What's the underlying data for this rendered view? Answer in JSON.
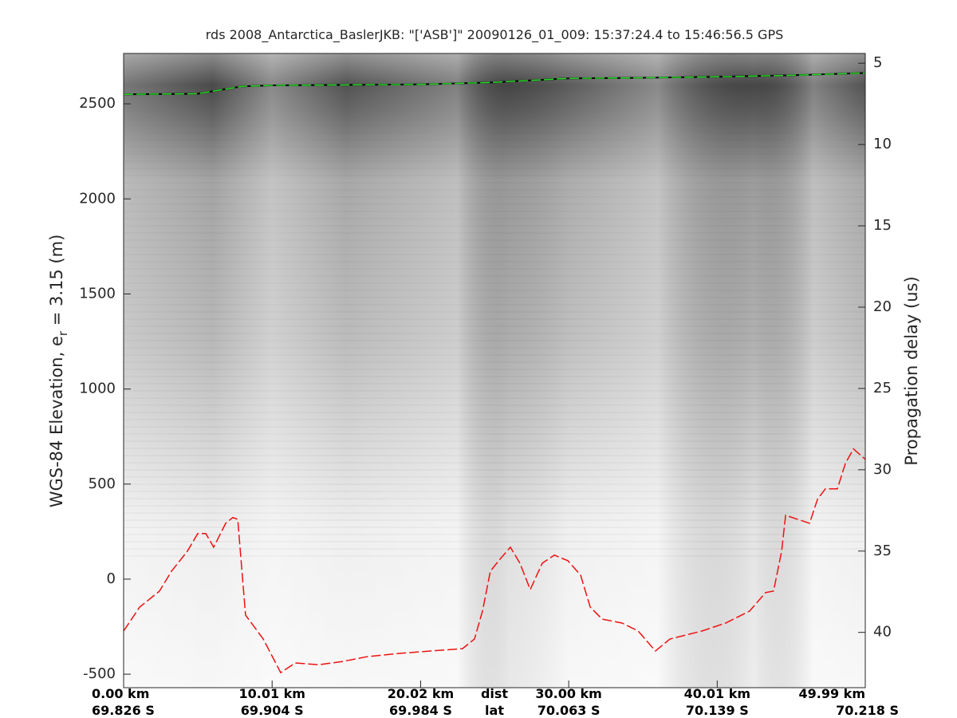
{
  "chart_data": {
    "type": "line",
    "title": "rds 2008_Antarctica_BaslerJKB: \"['ASB']\"  20090126_01_009: 15:37:24.4 to 15:46:56.5 GPS",
    "ylabel_parts": [
      "WGS-84 Elevation, e",
      "r",
      " = 3.15 (m)"
    ],
    "y2label": "Propagation delay (us)",
    "xlabel": "dist",
    "xlabel2": "lat",
    "xlim": [
      0,
      49.99
    ],
    "xticks": [
      {
        "value": 0,
        "label": "0.00 km"
      },
      {
        "value": 10.01,
        "label": "10.01 km"
      },
      {
        "value": 20.02,
        "label": "20.02 km"
      },
      {
        "value": 30.0,
        "label": "30.00 km"
      },
      {
        "value": 40.01,
        "label": "40.01 km"
      },
      {
        "value": 49.99,
        "label": "49.99 km"
      }
    ],
    "xtick_lat_labels": [
      "69.826 S",
      "69.904 S",
      "69.984 S",
      "70.063 S",
      "70.139 S",
      "70.218 S"
    ],
    "ylim": [
      -571,
      2765
    ],
    "yticks": [
      -500,
      0,
      500,
      1000,
      1500,
      2000,
      2500
    ],
    "y2lim": [
      43.4,
      4.4
    ],
    "y2ticks": [
      5,
      10,
      15,
      20,
      25,
      30,
      35,
      40
    ],
    "series": [
      {
        "name": "surface",
        "color": "#22dd22",
        "x": [
          0,
          5,
          8,
          10,
          20,
          25,
          30,
          35,
          40,
          45,
          49.99
        ],
        "values": [
          2550,
          2553,
          2592,
          2597,
          2602,
          2613,
          2634,
          2637,
          2642,
          2650,
          2662
        ]
      },
      {
        "name": "bottom",
        "color": "#ee1111",
        "x": [
          0,
          1.08,
          2.42,
          3.23,
          4.3,
          5.0,
          5.54,
          6.07,
          6.88,
          7.36,
          7.69,
          8.22,
          9.41,
          10.59,
          11.56,
          13.17,
          14.78,
          16.39,
          18.54,
          20.69,
          22.84,
          23.65,
          24.19,
          24.72,
          25.37,
          26.07,
          26.71,
          27.41,
          28.22,
          29.03,
          29.94,
          30.8,
          31.45,
          32.25,
          33.6,
          34.68,
          35.85,
          36.82,
          37.9,
          38.97,
          40.58,
          42.19,
          43.27,
          43.81,
          44.35,
          44.62,
          45.42,
          46.23,
          46.77,
          47.3,
          48.11,
          48.65,
          49.19,
          49.99
        ],
        "values": [
          -273,
          -147,
          -63,
          42,
          147,
          240,
          240,
          168,
          294,
          324,
          315,
          -189,
          -315,
          -492,
          -441,
          -450,
          -433,
          -408,
          -391,
          -378,
          -366,
          -315,
          -168,
          42,
          105,
          168,
          84,
          -55,
          84,
          126,
          97,
          21,
          -147,
          -210,
          -231,
          -273,
          -378,
          -315,
          -294,
          -273,
          -231,
          -168,
          -71,
          -63,
          147,
          336,
          315,
          294,
          420,
          475,
          475,
          609,
          685,
          630
        ]
      }
    ]
  }
}
